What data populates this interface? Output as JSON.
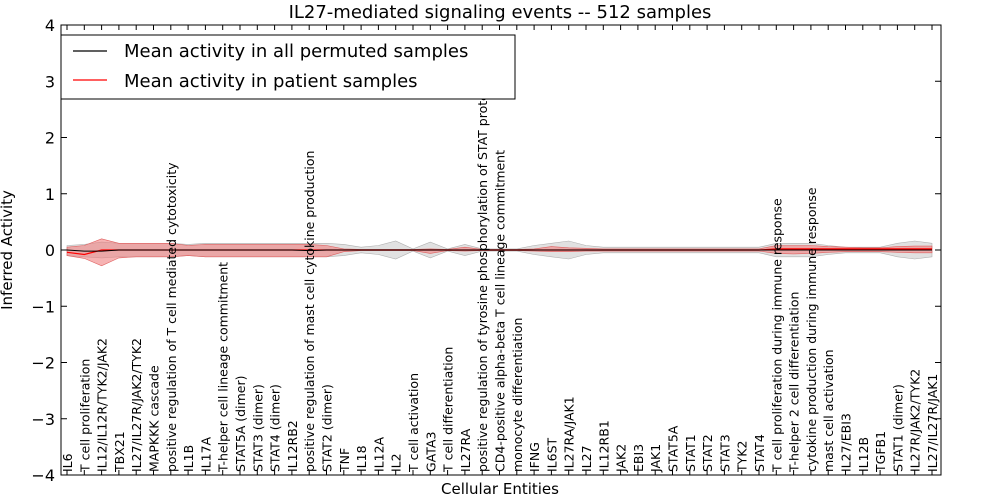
{
  "chart_data": {
    "type": "line",
    "title": "IL27-mediated signaling events -- 512 samples",
    "xlabel": "Cellular Entities",
    "ylabel": "Inferred Activity",
    "ylim": [
      -4,
      4
    ],
    "yticks": [
      -4,
      -3,
      -2,
      -1,
      0,
      1,
      2,
      3,
      4
    ],
    "ytick_labels": [
      "−4",
      "−3",
      "−2",
      "−1",
      "0",
      "1",
      "2",
      "3",
      "4"
    ],
    "legend": {
      "placement": "top-left",
      "entries": [
        {
          "label": "Mean activity in all permuted samples",
          "color": "#000000"
        },
        {
          "label": "Mean activity in patient samples",
          "color": "#ff0000"
        }
      ]
    },
    "colors": {
      "permuted": "#000000",
      "patient": "#ff0000",
      "patient_band": "#f08080",
      "permuted_band": "#c8c8c8"
    },
    "categories": [
      "IL6",
      "T cell proliferation",
      "IL12/IL12R/TYK2/JAK2",
      "TBX21",
      "IL27/IL27R/JAK2/TYK2",
      "MAPKKK cascade",
      "positive regulation of T cell mediated cytotoxicity",
      "IL1B",
      "IL17A",
      "T-helper cell lineage commitment",
      "STAT5A (dimer)",
      "STAT3 (dimer)",
      "STAT4 (dimer)",
      "IL12RB2",
      "positive regulation of mast cell cytokine production",
      "STAT2 (dimer)",
      "TNF",
      "IL18",
      "IL12A",
      "IL2",
      "T cell activation",
      "GATA3",
      "T cell differentiation",
      "IL27RA",
      "positive regulation of tyrosine phosphorylation of STAT protein",
      "CD4-positive alpha-beta T cell lineage commitment",
      "monocyte differentiation",
      "IFNG",
      "IL6ST",
      "IL27RA/JAK1",
      "IL27",
      "IL12RB1",
      "JAK2",
      "EBI3",
      "JAK1",
      "STAT5A",
      "STAT1",
      "STAT2",
      "STAT3",
      "TYK2",
      "STAT4",
      "T cell proliferation during immune response",
      "T-helper 2 cell differentiation",
      "cytokine production during immune response",
      "mast cell activation",
      "IL27/EBI3",
      "IL12B",
      "TGFB1",
      "STAT1 (dimer)",
      "IL27R/JAK2/TYK2",
      "IL27/IL27R/JAK1"
    ],
    "series": [
      {
        "name": "Mean activity in all permuted samples",
        "values": [
          0.0,
          -0.02,
          -0.02,
          0.0,
          0.0,
          0.0,
          0.0,
          0.0,
          0.0,
          0.0,
          0.0,
          0.0,
          0.0,
          0.0,
          -0.01,
          0.0,
          0.0,
          0.0,
          0.0,
          0.0,
          0.0,
          0.0,
          0.0,
          0.0,
          0.0,
          0.0,
          0.0,
          0.0,
          0.0,
          0.0,
          0.0,
          0.0,
          0.0,
          0.0,
          0.0,
          0.0,
          0.0,
          0.0,
          0.0,
          0.0,
          0.0,
          0.0,
          0.0,
          0.0,
          0.0,
          0.0,
          0.0,
          0.0,
          0.0,
          0.0,
          0.0
        ],
        "upper": [
          0.08,
          0.1,
          0.14,
          0.12,
          0.12,
          0.12,
          0.12,
          0.1,
          0.12,
          0.12,
          0.12,
          0.12,
          0.12,
          0.12,
          0.12,
          0.12,
          0.1,
          0.05,
          0.08,
          0.16,
          0.02,
          0.14,
          0.02,
          0.1,
          0.02,
          0.02,
          0.02,
          0.08,
          0.12,
          0.16,
          0.08,
          0.05,
          0.05,
          0.05,
          0.05,
          0.05,
          0.05,
          0.05,
          0.05,
          0.05,
          0.05,
          0.12,
          0.12,
          0.12,
          0.08,
          0.05,
          0.05,
          0.05,
          0.12,
          0.16,
          0.12
        ],
        "lower": [
          -0.1,
          -0.12,
          -0.14,
          -0.12,
          -0.12,
          -0.12,
          -0.12,
          -0.1,
          -0.12,
          -0.12,
          -0.12,
          -0.12,
          -0.12,
          -0.12,
          -0.12,
          -0.12,
          -0.1,
          -0.05,
          -0.08,
          -0.16,
          -0.02,
          -0.14,
          -0.02,
          -0.1,
          -0.02,
          -0.02,
          -0.02,
          -0.08,
          -0.12,
          -0.16,
          -0.08,
          -0.05,
          -0.05,
          -0.05,
          -0.05,
          -0.05,
          -0.05,
          -0.05,
          -0.05,
          -0.05,
          -0.05,
          -0.12,
          -0.12,
          -0.12,
          -0.08,
          -0.05,
          -0.05,
          -0.05,
          -0.12,
          -0.16,
          -0.12
        ]
      },
      {
        "name": "Mean activity in patient samples",
        "values": [
          -0.04,
          -0.08,
          0.0,
          0.0,
          0.0,
          0.0,
          0.0,
          0.0,
          0.0,
          0.0,
          0.0,
          0.0,
          0.0,
          0.0,
          0.0,
          0.0,
          0.0,
          0.0,
          0.0,
          0.0,
          0.0,
          0.0,
          0.0,
          0.0,
          0.0,
          0.0,
          0.0,
          0.0,
          0.0,
          0.0,
          0.0,
          0.0,
          0.0,
          0.0,
          0.0,
          0.0,
          0.0,
          0.0,
          0.0,
          0.0,
          0.0,
          0.02,
          0.02,
          0.02,
          0.02,
          0.02,
          0.02,
          0.02,
          0.02,
          0.02,
          0.02
        ],
        "upper": [
          0.05,
          0.08,
          0.2,
          0.12,
          0.12,
          0.12,
          0.12,
          0.08,
          0.1,
          0.1,
          0.1,
          0.1,
          0.1,
          0.1,
          0.1,
          0.08,
          0.02,
          0.01,
          0.01,
          0.01,
          0.01,
          0.02,
          0.01,
          0.05,
          0.01,
          0.01,
          0.01,
          0.02,
          0.06,
          0.04,
          0.03,
          0.02,
          0.02,
          0.02,
          0.02,
          0.02,
          0.02,
          0.02,
          0.02,
          0.02,
          0.02,
          0.08,
          0.08,
          0.08,
          0.06,
          0.05,
          0.04,
          0.04,
          0.06,
          0.07,
          0.07
        ],
        "lower": [
          -0.1,
          -0.15,
          -0.28,
          -0.14,
          -0.12,
          -0.12,
          -0.12,
          -0.1,
          -0.12,
          -0.12,
          -0.12,
          -0.12,
          -0.12,
          -0.12,
          -0.12,
          -0.12,
          -0.03,
          -0.01,
          -0.01,
          -0.01,
          -0.01,
          -0.06,
          -0.01,
          -0.02,
          -0.01,
          -0.01,
          -0.01,
          -0.02,
          -0.03,
          -0.03,
          -0.02,
          -0.02,
          -0.02,
          -0.02,
          -0.02,
          -0.02,
          -0.02,
          -0.02,
          -0.02,
          -0.02,
          -0.02,
          -0.06,
          -0.07,
          -0.06,
          -0.04,
          -0.03,
          -0.03,
          -0.03,
          -0.04,
          -0.05,
          -0.05
        ]
      }
    ]
  }
}
